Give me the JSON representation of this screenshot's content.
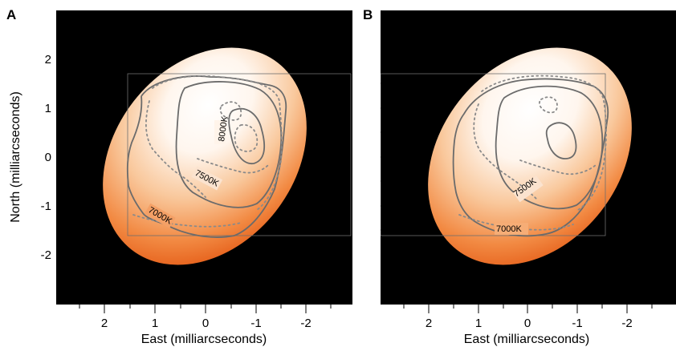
{
  "figure": {
    "panels": [
      {
        "letter": "A",
        "contour_labels": [
          "8000K",
          "7500K",
          "7000K"
        ]
      },
      {
        "letter": "B",
        "contour_labels": [
          "7500K",
          "7000K"
        ]
      }
    ],
    "x_axis": {
      "title": "East (milliarcseconds)",
      "tick_labels": [
        "2",
        "1",
        "0",
        "-1",
        "-2"
      ]
    },
    "y_axis": {
      "title": "North (milliarcseconds)",
      "tick_labels": [
        "2",
        "1",
        "0",
        "-1",
        "-2"
      ]
    },
    "colors": {
      "background": "#000000",
      "star_edge": "#e8621c",
      "star_mid": "#f5a062",
      "star_center": "#ffffff",
      "contour_solid": "#6b6b6b",
      "contour_dotted": "#8a8a8a"
    }
  }
}
